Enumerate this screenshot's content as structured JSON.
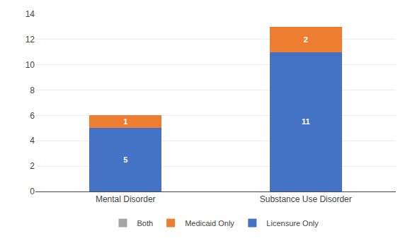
{
  "chart_data": {
    "type": "bar",
    "stacked": true,
    "data_labels": true,
    "grid": true,
    "legend": "bottom",
    "categories": [
      "Mental Disorder",
      "Substance Use Disorder"
    ],
    "series": [
      {
        "name": "Licensure Only",
        "values": [
          5,
          11
        ],
        "color": "#4472C4"
      },
      {
        "name": "Medicaid Only",
        "values": [
          1,
          2
        ],
        "color": "#ED7D31"
      },
      {
        "name": "Both",
        "values": [
          0,
          0
        ],
        "color": "#A5A5A5"
      }
    ],
    "ylim": [
      0,
      14
    ],
    "yticks": [
      0,
      2,
      4,
      6,
      8,
      10,
      12,
      14
    ]
  }
}
